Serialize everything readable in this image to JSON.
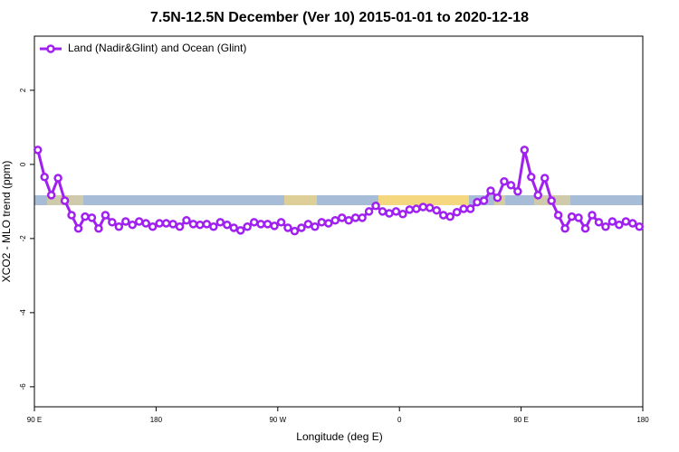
{
  "chart_data": {
    "type": "line",
    "title": "7.5N-12.5N December (Ver 10)   2015-01-01 to 2020-12-18",
    "xlabel": "Longitude (deg E)",
    "ylabel": "XCO2 - MLO trend (ppm)",
    "legend": "top-left",
    "x": [
      92.5,
      97.5,
      102.5,
      107.5,
      112.5,
      117.5,
      122.5,
      127.5,
      132.5,
      137.5,
      142.5,
      147.5,
      152.5,
      157.5,
      162.5,
      167.5,
      172.5,
      177.5,
      182.5,
      187.5,
      192.5,
      197.5,
      202.5,
      207.5,
      212.5,
      217.5,
      222.5,
      227.5,
      232.5,
      237.5,
      242.5,
      247.5,
      252.5,
      257.5,
      262.5,
      267.5,
      272.5,
      277.5,
      282.5,
      287.5,
      292.5,
      297.5,
      302.5,
      307.5,
      312.5,
      317.5,
      322.5,
      327.5,
      332.5,
      337.5,
      342.5,
      347.5,
      352.5,
      357.5,
      362.5,
      367.5,
      372.5,
      377.5,
      382.5,
      387.5,
      392.5,
      397.5,
      402.5,
      407.5,
      412.5,
      417.5,
      422.5,
      427.5,
      432.5,
      437.5,
      442.5,
      447.5,
      452.5,
      457.5,
      462.5,
      467.5,
      472.5,
      477.5,
      482.5,
      487.5,
      492.5,
      497.5,
      502.5,
      507.5,
      512.5,
      517.5,
      522.5,
      527.5,
      532.5,
      537.5
    ],
    "series": [
      {
        "name": "Land (Nadir&Glint) and Ocean (Glint)",
        "color": "#a020f0",
        "values": [
          0.39,
          -0.34,
          -0.83,
          -0.37,
          -0.98,
          -1.37,
          -1.73,
          -1.41,
          -1.44,
          -1.73,
          -1.37,
          -1.56,
          -1.68,
          -1.54,
          -1.63,
          -1.54,
          -1.59,
          -1.68,
          -1.59,
          -1.59,
          -1.61,
          -1.68,
          -1.51,
          -1.61,
          -1.63,
          -1.61,
          -1.68,
          -1.56,
          -1.63,
          -1.71,
          -1.78,
          -1.68,
          -1.56,
          -1.61,
          -1.61,
          -1.66,
          -1.56,
          -1.71,
          -1.8,
          -1.71,
          -1.61,
          -1.68,
          -1.56,
          -1.59,
          -1.51,
          -1.44,
          -1.51,
          -1.44,
          -1.44,
          -1.27,
          -1.12,
          -1.27,
          -1.32,
          -1.27,
          -1.34,
          -1.22,
          -1.2,
          -1.15,
          -1.17,
          -1.24,
          -1.37,
          -1.41,
          -1.29,
          -1.2,
          -1.2,
          -1.02,
          -0.98,
          -0.71,
          -0.9,
          -0.46,
          -0.56,
          -0.73,
          0.39,
          -0.34,
          -0.83,
          -0.37,
          -0.98,
          -1.37,
          -1.73,
          -1.41,
          -1.44,
          -1.73,
          -1.37,
          -1.56,
          -1.68,
          -1.54,
          -1.63,
          -1.54,
          -1.59,
          -1.68
        ]
      }
    ],
    "xlim": [
      90,
      540
    ],
    "xticks": [
      {
        "value": 90,
        "label": "90 E"
      },
      180,
      {
        "value": 270,
        "label": "90 W"
      },
      {
        "value": 360,
        "label": "0"
      },
      {
        "value": 450,
        "label": "90 E"
      },
      {
        "value": 540,
        "label": "180"
      }
    ],
    "ylim": [
      -6.54,
      3.46
    ],
    "yticks": [
      -6,
      -4,
      -2,
      0,
      2
    ]
  }
}
